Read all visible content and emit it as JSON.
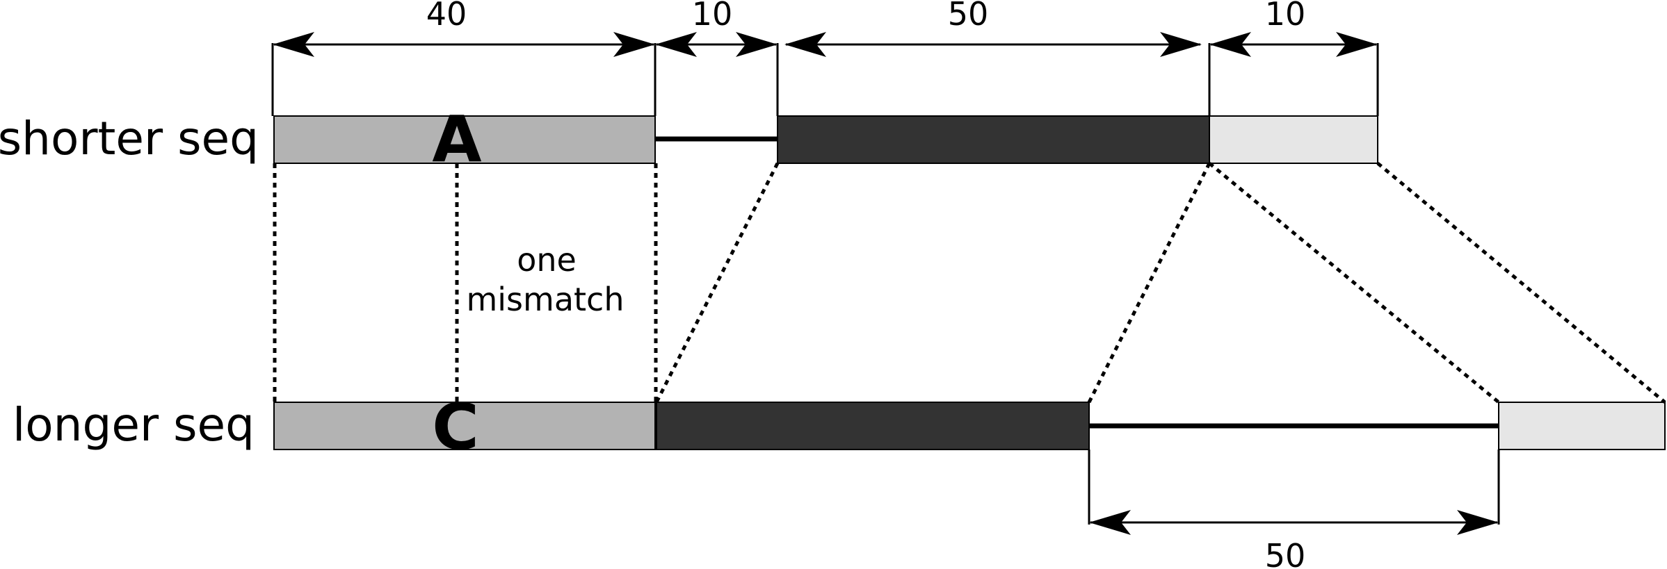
{
  "labels": {
    "shorter": "shorter seq",
    "longer": "longer seq"
  },
  "bases": {
    "top": "A",
    "bottom": "C"
  },
  "note": {
    "line1": "one",
    "line2": "mismatch"
  },
  "dimensions": {
    "top_1": "40",
    "top_2": "10",
    "top_3": "50",
    "top_4": "10",
    "bottom_1": "50"
  },
  "colors": {
    "light_gray": "#b3b3b3",
    "dark": "#333333",
    "very_light": "#e6e6e6",
    "line": "#000000"
  }
}
